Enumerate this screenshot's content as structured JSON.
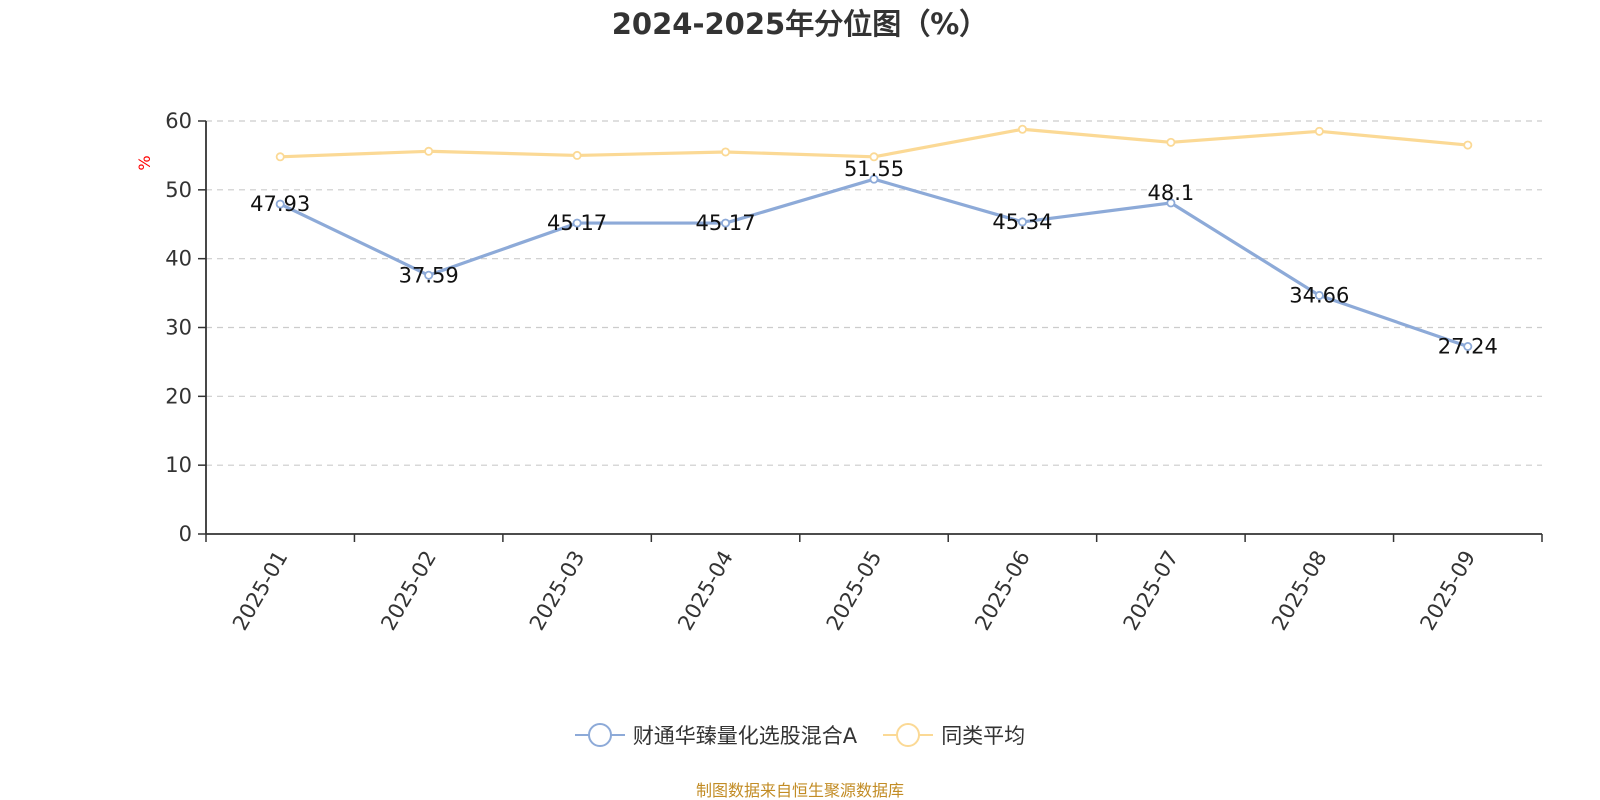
{
  "title": "2024-2025年分位图（%）",
  "source_note": "制图数据来自恒生聚源数据库",
  "colors": {
    "series_a": "#8daad8",
    "series_b": "#fbd995",
    "axis": "#333333",
    "grid": "#cccccc",
    "ylabel": "#ff0000",
    "source": "#c28c25"
  },
  "chart_data": {
    "type": "line",
    "title": "2024-2025年分位图（%）",
    "xlabel": "",
    "ylabel": "%",
    "ylim": [
      0,
      60
    ],
    "yticks": [
      0,
      10,
      20,
      30,
      40,
      50,
      60
    ],
    "grid": true,
    "legend_position": "bottom-center",
    "categories": [
      "2025-01",
      "2025-02",
      "2025-03",
      "2025-04",
      "2025-05",
      "2025-06",
      "2025-07",
      "2025-08",
      "2025-09"
    ],
    "series": [
      {
        "name": "财通华臻量化选股混合A",
        "color": "#8daad8",
        "values": [
          47.93,
          37.59,
          45.17,
          45.17,
          51.55,
          45.34,
          48.1,
          34.66,
          27.24
        ],
        "labels": [
          "47.93",
          "37.59",
          "45.17",
          "45.17",
          "51.55",
          "45.34",
          "48.1",
          "34.66",
          "27.24"
        ]
      },
      {
        "name": "同类平均",
        "color": "#fbd995",
        "values": [
          54.8,
          55.6,
          55.0,
          55.5,
          54.8,
          58.8,
          56.9,
          58.5,
          56.5
        ]
      }
    ]
  }
}
